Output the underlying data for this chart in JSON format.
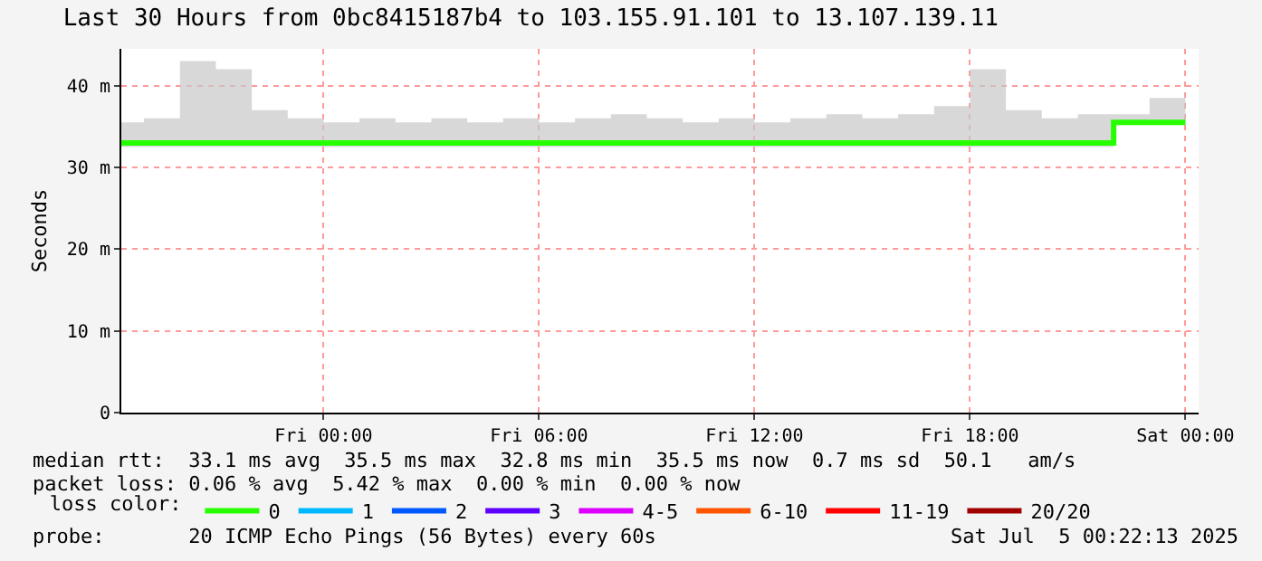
{
  "chart_data": {
    "type": "line",
    "title": "Last 30 Hours from 0bc8415187b4 to 103.155.91.101 to 13.107.139.11",
    "ylabel": "Seconds",
    "legend_title": "loss color:",
    "x": [
      "2025-07-03T18:22",
      "2025-07-03T19:00",
      "2025-07-03T20:00",
      "2025-07-03T21:00",
      "2025-07-03T22:00",
      "2025-07-03T23:00",
      "2025-07-04T00:00",
      "2025-07-04T01:00",
      "2025-07-04T02:00",
      "2025-07-04T03:00",
      "2025-07-04T04:00",
      "2025-07-04T05:00",
      "2025-07-04T06:00",
      "2025-07-04T07:00",
      "2025-07-04T08:00",
      "2025-07-04T09:00",
      "2025-07-04T10:00",
      "2025-07-04T11:00",
      "2025-07-04T12:00",
      "2025-07-04T13:00",
      "2025-07-04T14:00",
      "2025-07-04T15:00",
      "2025-07-04T16:00",
      "2025-07-04T17:00",
      "2025-07-04T18:00",
      "2025-07-04T19:00",
      "2025-07-04T20:00",
      "2025-07-04T21:00",
      "2025-07-04T22:00",
      "2025-07-04T23:00",
      "2025-07-05T00:00"
    ],
    "series": [
      {
        "name": "0",
        "color": "#26ff00",
        "type": "step",
        "values": [
          33,
          33,
          33,
          33,
          33,
          33,
          33,
          33,
          33,
          33,
          33,
          33,
          33,
          33,
          33,
          33,
          33,
          33,
          33,
          33,
          33,
          33,
          33,
          33,
          33,
          33,
          33,
          33,
          35.5,
          35.5,
          35.5
        ],
        "lower": [
          32.5,
          32.5,
          32.5,
          32.5,
          32.5,
          32.5,
          32.5,
          32.5,
          32.5,
          32.5,
          32.5,
          32.5,
          32.5,
          32.5,
          32.5,
          32.5,
          32.5,
          32.5,
          32.5,
          32.5,
          32.5,
          32.5,
          32.5,
          32.5,
          32.5,
          32.5,
          32.5,
          32.5,
          35.5,
          35.5,
          35.5
        ],
        "upper": [
          35.5,
          36,
          43,
          42,
          37,
          36,
          35.5,
          36,
          35.5,
          36,
          35.5,
          36,
          35.5,
          36,
          36.5,
          36,
          35.5,
          36,
          35.5,
          36,
          36.5,
          36,
          36.5,
          37.5,
          42,
          37,
          36,
          36.5,
          36.5,
          38.5,
          39
        ]
      },
      {
        "name": "1",
        "color": "#00b8ff",
        "values": [
          null,
          null,
          null,
          null,
          null,
          null,
          null,
          null,
          null,
          null,
          null,
          null,
          null,
          null,
          null,
          null,
          null,
          null,
          null,
          null,
          null,
          null,
          null,
          null,
          null,
          null,
          null,
          null,
          null,
          null,
          null
        ]
      },
      {
        "name": "2",
        "color": "#0059ff",
        "values": [
          null,
          null,
          null,
          null,
          null,
          null,
          null,
          null,
          null,
          null,
          null,
          null,
          null,
          null,
          null,
          null,
          null,
          null,
          null,
          null,
          null,
          null,
          null,
          null,
          null,
          null,
          null,
          null,
          null,
          null,
          null
        ]
      },
      {
        "name": "3",
        "color": "#5e00ff",
        "values": [
          null,
          null,
          null,
          null,
          null,
          null,
          null,
          null,
          null,
          null,
          null,
          null,
          null,
          null,
          null,
          null,
          null,
          null,
          null,
          null,
          null,
          null,
          null,
          null,
          null,
          null,
          null,
          null,
          null,
          null,
          null
        ]
      },
      {
        "name": "4-5",
        "color": "#dd00ff",
        "values": [
          null,
          null,
          null,
          null,
          null,
          null,
          null,
          null,
          null,
          null,
          null,
          null,
          null,
          null,
          null,
          null,
          null,
          null,
          null,
          null,
          null,
          null,
          null,
          null,
          null,
          null,
          null,
          null,
          null,
          null,
          null
        ]
      },
      {
        "name": "6-10",
        "color": "#ff5500",
        "values": [
          null,
          null,
          null,
          null,
          null,
          null,
          null,
          null,
          null,
          null,
          null,
          null,
          null,
          null,
          null,
          null,
          null,
          null,
          null,
          null,
          null,
          null,
          null,
          null,
          null,
          null,
          null,
          null,
          null,
          null,
          null
        ]
      },
      {
        "name": "11-19",
        "color": "#ff0000",
        "values": [
          null,
          null,
          null,
          null,
          null,
          null,
          null,
          null,
          null,
          null,
          null,
          null,
          null,
          null,
          null,
          null,
          null,
          null,
          null,
          null,
          null,
          null,
          null,
          null,
          null,
          null,
          null,
          null,
          null,
          null,
          null
        ]
      },
      {
        "name": "20/20",
        "color": "#a10000",
        "values": [
          null,
          null,
          null,
          null,
          null,
          null,
          null,
          null,
          null,
          null,
          null,
          null,
          null,
          null,
          null,
          null,
          null,
          null,
          null,
          null,
          null,
          null,
          null,
          null,
          null,
          null,
          null,
          null,
          null,
          null,
          null
        ]
      }
    ],
    "xlim": [
      "2025-07-03T18:22",
      "2025-07-05T00:22"
    ],
    "xticks": [
      {
        "value": "2025-07-04T00:00",
        "label": "Fri 00:00"
      },
      {
        "value": "2025-07-04T06:00",
        "label": "Fri 06:00"
      },
      {
        "value": "2025-07-04T12:00",
        "label": "Fri 12:00"
      },
      {
        "value": "2025-07-04T18:00",
        "label": "Fri 18:00"
      },
      {
        "value": "2025-07-05T00:00",
        "label": "Sat 00:00"
      }
    ],
    "ylim": [
      0,
      44.5
    ],
    "yticks": [
      0,
      {
        "value": 10,
        "label": "10 m"
      },
      {
        "value": 20,
        "label": "20 m"
      },
      {
        "value": 30,
        "label": "30 m"
      },
      {
        "value": 40,
        "label": "40 m"
      }
    ],
    "grid": true,
    "legend": "bottom",
    "annotations": [
      "median rtt:  33.1 ms avg  35.5 ms max  32.8 ms min  35.5 ms now  0.7 ms sd  50.1   am/s",
      "packet loss: 0.06 % avg  5.42 % max  0.00 % min  0.00 % now",
      "probe:       20 ICMP Echo Pings (56 Bytes) every 60s",
      "Sat Jul  5 00:22:13 2025"
    ]
  }
}
